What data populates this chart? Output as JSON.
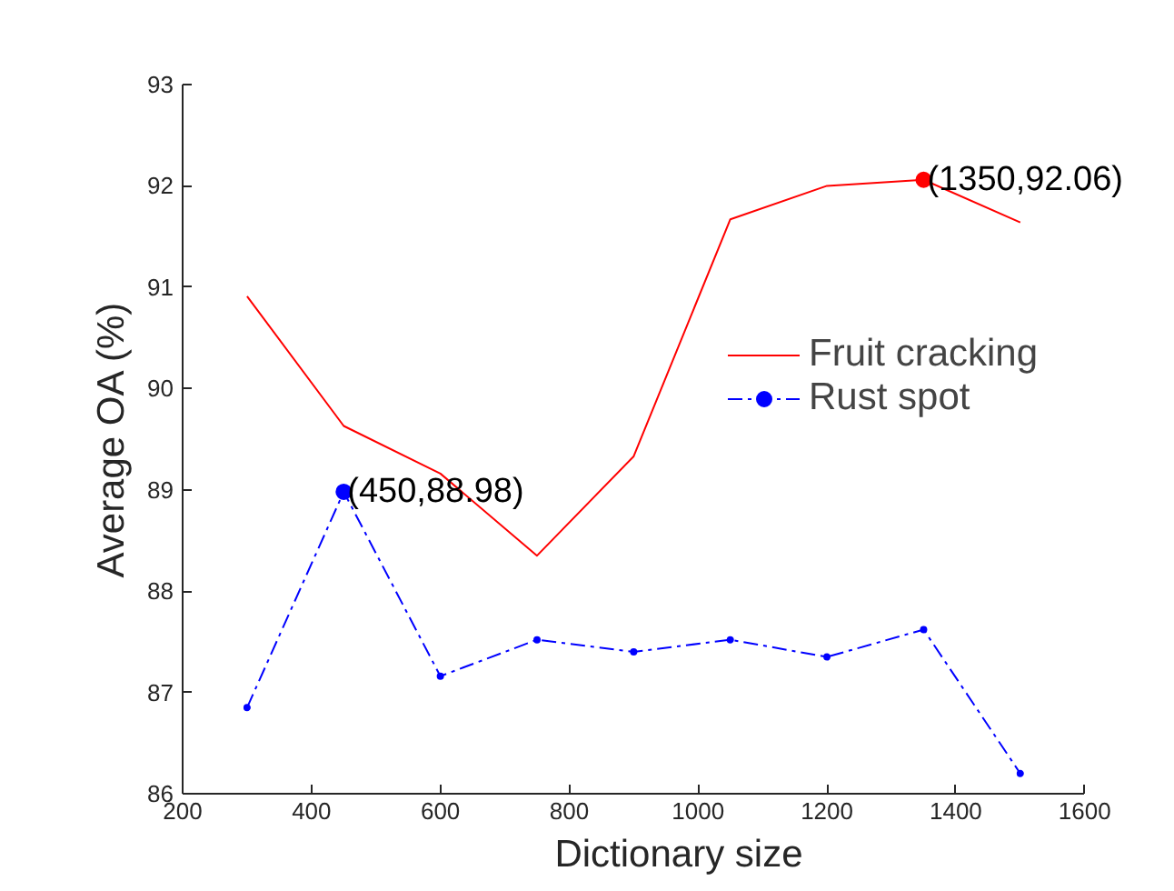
{
  "chart_data": {
    "type": "line",
    "xlabel": "Dictionary size",
    "ylabel": "Average OA (%)",
    "x": [
      300,
      450,
      600,
      750,
      900,
      1050,
      1200,
      1350,
      1500
    ],
    "series": [
      {
        "name": "Fruit cracking",
        "color": "#ff0000",
        "values": [
          90.91,
          89.63,
          89.16,
          88.35,
          89.33,
          91.67,
          92.0,
          92.06,
          91.64
        ],
        "marker": "none",
        "line_style": "solid"
      },
      {
        "name": "Rust spot",
        "color": "#0000ff",
        "values": [
          86.85,
          88.98,
          87.16,
          87.52,
          87.4,
          87.52,
          87.35,
          87.62,
          86.2
        ],
        "marker": "circle",
        "line_style": "dashdot"
      }
    ],
    "xlim": [
      200,
      1600
    ],
    "xticks": [
      200,
      400,
      600,
      800,
      1000,
      1200,
      1400,
      1600
    ],
    "ylim": [
      86,
      93
    ],
    "yticks": [
      86,
      87,
      88,
      89,
      90,
      91,
      92,
      93
    ],
    "grid": false,
    "legend": "top right",
    "annotations": [
      {
        "text": "(450,88.98)",
        "x": 450,
        "y": 88.98
      },
      {
        "text": "(1350,92.06)",
        "x": 1350,
        "y": 92.06
      }
    ]
  }
}
